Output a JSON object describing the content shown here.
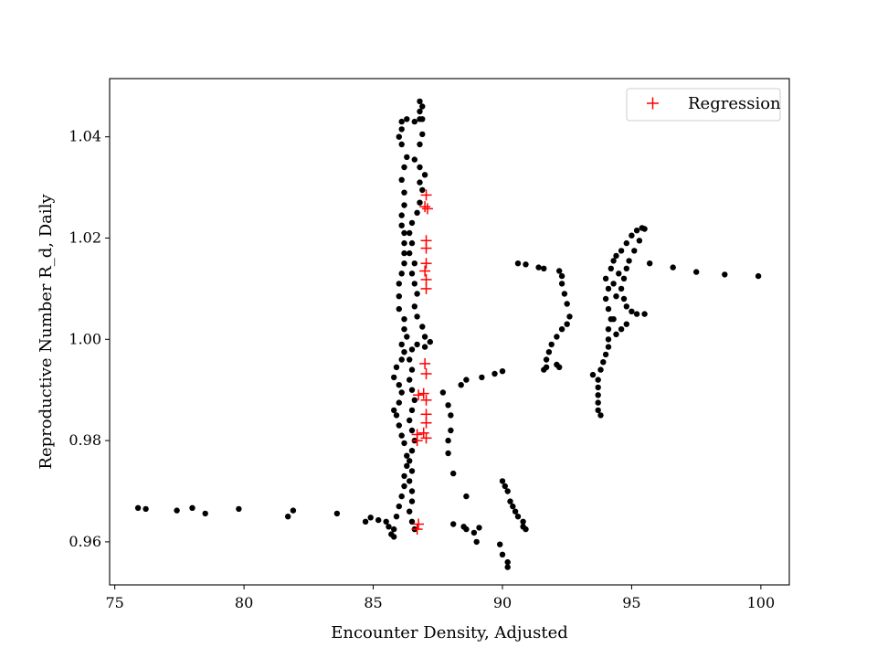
{
  "chart_data": {
    "type": "scatter",
    "title": "",
    "xlabel": "Encounter Density, Adjusted",
    "ylabel": "Reproductive Number R_d, Daily",
    "xlim": [
      74.8,
      101.1
    ],
    "ylim": [
      0.9515,
      1.0515
    ],
    "xticks": [
      "75",
      "80",
      "85",
      "90",
      "95",
      "100"
    ],
    "yticks": [
      "0.96",
      "0.98",
      "1.00",
      "1.02",
      "1.04"
    ],
    "grid": false,
    "legend": {
      "placement": "upper-right",
      "entries": [
        "Regression"
      ]
    },
    "series": [
      {
        "marker": "dot",
        "color": "#000000",
        "points": [
          [
            75.9,
            0.9667
          ],
          [
            76.2,
            0.9665
          ],
          [
            77.4,
            0.9662
          ],
          [
            78.0,
            0.9667
          ],
          [
            78.5,
            0.9656
          ],
          [
            79.8,
            0.9665
          ],
          [
            81.7,
            0.965
          ],
          [
            81.9,
            0.9662
          ],
          [
            83.6,
            0.9656
          ],
          [
            84.7,
            0.964
          ],
          [
            84.9,
            0.9648
          ],
          [
            85.2,
            0.9643
          ],
          [
            85.5,
            0.964
          ],
          [
            85.6,
            0.963
          ],
          [
            85.7,
            0.9615
          ],
          [
            85.8,
            0.961
          ],
          [
            85.8,
            0.9625
          ],
          [
            85.9,
            0.965
          ],
          [
            86.0,
            0.967
          ],
          [
            86.1,
            0.969
          ],
          [
            86.2,
            0.971
          ],
          [
            86.2,
            0.973
          ],
          [
            86.3,
            0.975
          ],
          [
            86.3,
            0.977
          ],
          [
            86.2,
            0.9795
          ],
          [
            86.1,
            0.981
          ],
          [
            86.0,
            0.983
          ],
          [
            85.9,
            0.985
          ],
          [
            85.8,
            0.986
          ],
          [
            86.0,
            0.9875
          ],
          [
            86.1,
            0.9895
          ],
          [
            86.0,
            0.991
          ],
          [
            85.8,
            0.9925
          ],
          [
            85.9,
            0.9945
          ],
          [
            86.1,
            0.996
          ],
          [
            86.2,
            0.9975
          ],
          [
            86.1,
            0.999
          ],
          [
            86.3,
            1.0005
          ],
          [
            86.2,
            1.002
          ],
          [
            86.2,
            1.004
          ],
          [
            86.0,
            1.006
          ],
          [
            86.0,
            1.0085
          ],
          [
            86.0,
            1.011
          ],
          [
            86.1,
            1.013
          ],
          [
            86.2,
            1.015
          ],
          [
            86.2,
            1.017
          ],
          [
            86.2,
            1.019
          ],
          [
            86.2,
            1.021
          ],
          [
            86.1,
            1.0225
          ],
          [
            86.1,
            1.0245
          ],
          [
            86.2,
            1.0265
          ],
          [
            86.2,
            1.029
          ],
          [
            86.1,
            1.0315
          ],
          [
            86.2,
            1.034
          ],
          [
            86.3,
            1.036
          ],
          [
            86.1,
            1.0385
          ],
          [
            86.0,
            1.04
          ],
          [
            86.1,
            1.0415
          ],
          [
            86.1,
            1.043
          ],
          [
            86.3,
            1.0435
          ],
          [
            86.6,
            1.043
          ],
          [
            86.8,
            1.0435
          ],
          [
            86.8,
            1.045
          ],
          [
            86.9,
            1.046
          ],
          [
            86.8,
            1.047
          ],
          [
            86.9,
            1.0435
          ],
          [
            86.9,
            1.0405
          ],
          [
            86.8,
            1.0385
          ],
          [
            86.6,
            1.0355
          ],
          [
            86.8,
            1.034
          ],
          [
            87.0,
            1.0325
          ],
          [
            86.8,
            1.031
          ],
          [
            86.9,
            1.0295
          ],
          [
            86.8,
            1.027
          ],
          [
            86.7,
            1.025
          ],
          [
            86.5,
            1.023
          ],
          [
            86.4,
            1.021
          ],
          [
            86.5,
            1.019
          ],
          [
            86.4,
            1.017
          ],
          [
            86.6,
            1.015
          ],
          [
            86.5,
            1.013
          ],
          [
            86.6,
            1.011
          ],
          [
            86.7,
            1.009
          ],
          [
            86.6,
            1.0065
          ],
          [
            86.7,
            1.0045
          ],
          [
            86.9,
            1.0025
          ],
          [
            87.0,
            1.0005
          ],
          [
            87.2,
            0.9995
          ],
          [
            87.0,
            0.9985
          ],
          [
            86.7,
            0.999
          ],
          [
            86.5,
            0.998
          ],
          [
            86.4,
            0.996
          ],
          [
            86.5,
            0.994
          ],
          [
            86.4,
            0.992
          ],
          [
            86.5,
            0.99
          ],
          [
            86.6,
            0.988
          ],
          [
            86.5,
            0.986
          ],
          [
            86.4,
            0.984
          ],
          [
            86.5,
            0.982
          ],
          [
            86.6,
            0.98
          ],
          [
            86.5,
            0.978
          ],
          [
            86.4,
            0.976
          ],
          [
            86.5,
            0.974
          ],
          [
            86.4,
            0.972
          ],
          [
            86.5,
            0.97
          ],
          [
            86.5,
            0.968
          ],
          [
            86.4,
            0.966
          ],
          [
            86.5,
            0.964
          ],
          [
            86.6,
            0.9625
          ],
          [
            87.7,
            0.9895
          ],
          [
            87.9,
            0.987
          ],
          [
            88.0,
            0.985
          ],
          [
            88.0,
            0.982
          ],
          [
            87.9,
            0.98
          ],
          [
            87.9,
            0.9775
          ],
          [
            88.1,
            0.9735
          ],
          [
            88.4,
            0.991
          ],
          [
            88.6,
            0.992
          ],
          [
            89.2,
            0.9925
          ],
          [
            89.7,
            0.9932
          ],
          [
            90.0,
            0.9937
          ],
          [
            88.1,
            0.9635
          ],
          [
            88.5,
            0.963
          ],
          [
            88.6,
            0.9625
          ],
          [
            88.6,
            0.969
          ],
          [
            88.9,
            0.9618
          ],
          [
            89.1,
            0.9628
          ],
          [
            89.0,
            0.96
          ],
          [
            90.0,
            0.972
          ],
          [
            90.1,
            0.971
          ],
          [
            90.2,
            0.97
          ],
          [
            90.3,
            0.968
          ],
          [
            90.4,
            0.967
          ],
          [
            90.5,
            0.966
          ],
          [
            90.6,
            0.965
          ],
          [
            90.8,
            0.964
          ],
          [
            90.8,
            0.963
          ],
          [
            90.9,
            0.9625
          ],
          [
            90.2,
            0.956
          ],
          [
            90.0,
            0.9575
          ],
          [
            89.9,
            0.9595
          ],
          [
            90.2,
            0.955
          ],
          [
            90.6,
            1.015
          ],
          [
            90.9,
            1.0148
          ],
          [
            91.4,
            1.0142
          ],
          [
            91.6,
            1.014
          ],
          [
            92.2,
            1.0135
          ],
          [
            92.3,
            1.0125
          ],
          [
            92.3,
            1.011
          ],
          [
            92.4,
            1.009
          ],
          [
            92.5,
            1.007
          ],
          [
            92.6,
            1.0045
          ],
          [
            92.5,
            1.003
          ],
          [
            92.3,
            1.002
          ],
          [
            92.1,
            1.0005
          ],
          [
            91.9,
            0.999
          ],
          [
            91.8,
            0.9975
          ],
          [
            91.7,
            0.996
          ],
          [
            91.7,
            0.9945
          ],
          [
            91.6,
            0.994
          ],
          [
            92.1,
            0.995
          ],
          [
            92.2,
            0.9945
          ],
          [
            93.5,
            0.993
          ],
          [
            93.7,
            0.992
          ],
          [
            93.7,
            0.9905
          ],
          [
            93.7,
            0.989
          ],
          [
            93.7,
            0.9875
          ],
          [
            93.7,
            0.986
          ],
          [
            93.8,
            0.985
          ],
          [
            93.8,
            0.994
          ],
          [
            93.9,
            0.9955
          ],
          [
            94.0,
            0.997
          ],
          [
            94.1,
            0.9985
          ],
          [
            94.1,
            1.0
          ],
          [
            94.1,
            1.002
          ],
          [
            94.2,
            1.004
          ],
          [
            94.1,
            1.006
          ],
          [
            94.0,
            1.008
          ],
          [
            94.1,
            1.01
          ],
          [
            94.0,
            1.012
          ],
          [
            94.2,
            1.014
          ],
          [
            94.3,
            1.0155
          ],
          [
            94.4,
            1.0165
          ],
          [
            94.6,
            1.0175
          ],
          [
            94.8,
            1.019
          ],
          [
            95.0,
            1.0205
          ],
          [
            95.2,
            1.0215
          ],
          [
            95.4,
            1.022
          ],
          [
            95.5,
            1.0218
          ],
          [
            95.3,
            1.0195
          ],
          [
            95.1,
            1.0175
          ],
          [
            94.9,
            1.0155
          ],
          [
            94.8,
            1.014
          ],
          [
            94.7,
            1.012
          ],
          [
            94.6,
            1.01
          ],
          [
            94.7,
            1.008
          ],
          [
            94.8,
            1.0065
          ],
          [
            95.0,
            1.0055
          ],
          [
            95.2,
            1.005
          ],
          [
            95.5,
            1.005
          ],
          [
            94.6,
            1.002
          ],
          [
            94.8,
            1.003
          ],
          [
            94.4,
            1.0085
          ],
          [
            94.3,
            1.011
          ],
          [
            94.5,
            1.013
          ],
          [
            94.3,
            1.004
          ],
          [
            94.4,
            1.001
          ],
          [
            95.7,
            1.015
          ],
          [
            96.6,
            1.0142
          ],
          [
            97.5,
            1.0133
          ],
          [
            98.6,
            1.0128
          ],
          [
            99.9,
            1.0125
          ]
        ]
      },
      {
        "name": "Regression",
        "marker": "plus",
        "color": "#ff0000",
        "points": [
          [
            87.05,
            1.0285
          ],
          [
            87.0,
            1.0262
          ],
          [
            87.1,
            1.0258
          ],
          [
            87.05,
            1.0195
          ],
          [
            87.05,
            1.018
          ],
          [
            87.05,
            1.015
          ],
          [
            87.0,
            1.0135
          ],
          [
            87.05,
            1.0118
          ],
          [
            87.05,
            1.01
          ],
          [
            87.0,
            0.9952
          ],
          [
            87.05,
            0.9932
          ],
          [
            86.75,
            0.989
          ],
          [
            86.95,
            0.9893
          ],
          [
            87.05,
            0.988
          ],
          [
            87.05,
            0.9852
          ],
          [
            87.05,
            0.9835
          ],
          [
            86.7,
            0.9812
          ],
          [
            86.95,
            0.9815
          ],
          [
            87.05,
            0.9805
          ],
          [
            86.7,
            0.98
          ],
          [
            86.75,
            0.9635
          ],
          [
            86.7,
            0.9625
          ]
        ]
      }
    ]
  }
}
